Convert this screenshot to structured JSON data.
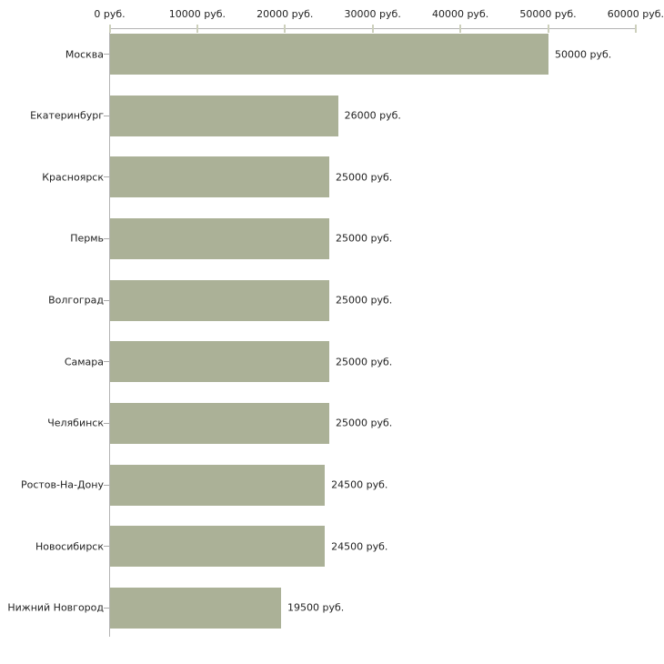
{
  "chart_data": {
    "type": "bar",
    "orientation": "horizontal",
    "title": "",
    "xlabel": "",
    "ylabel": "",
    "categories": [
      "Москва",
      "Екатеринбург",
      "Красноярск",
      "Пермь",
      "Волгоград",
      "Самара",
      "Челябинск",
      "Ростов-На-Дону",
      "Новосибирск",
      "Нижний Новгород"
    ],
    "values": [
      50000,
      26000,
      25000,
      25000,
      25000,
      25000,
      25000,
      24500,
      24500,
      19500
    ],
    "bar_labels": [
      "50000 руб.",
      "26000 руб.",
      "25000 руб.",
      "25000 руб.",
      "25000 руб.",
      "25000 руб.",
      "25000 руб.",
      "24500 руб.",
      "24500 руб.",
      "19500 руб."
    ],
    "x_axis": {
      "position": "top",
      "min": 0,
      "max": 60000,
      "tick_values": [
        0,
        10000,
        20000,
        30000,
        40000,
        50000,
        60000
      ],
      "tick_labels": [
        "0 руб.",
        "10000 руб.",
        "20000 руб.",
        "30000 руб.",
        "40000 руб.",
        "50000 руб.",
        "60000 руб."
      ]
    },
    "grid": false,
    "legend": false,
    "colors": {
      "bar_fill": "#abb197",
      "axis_line": "#b3b3b3",
      "axis_tick": "#cdd0bc",
      "label_text": "#222222",
      "background": "#ffffff"
    }
  }
}
